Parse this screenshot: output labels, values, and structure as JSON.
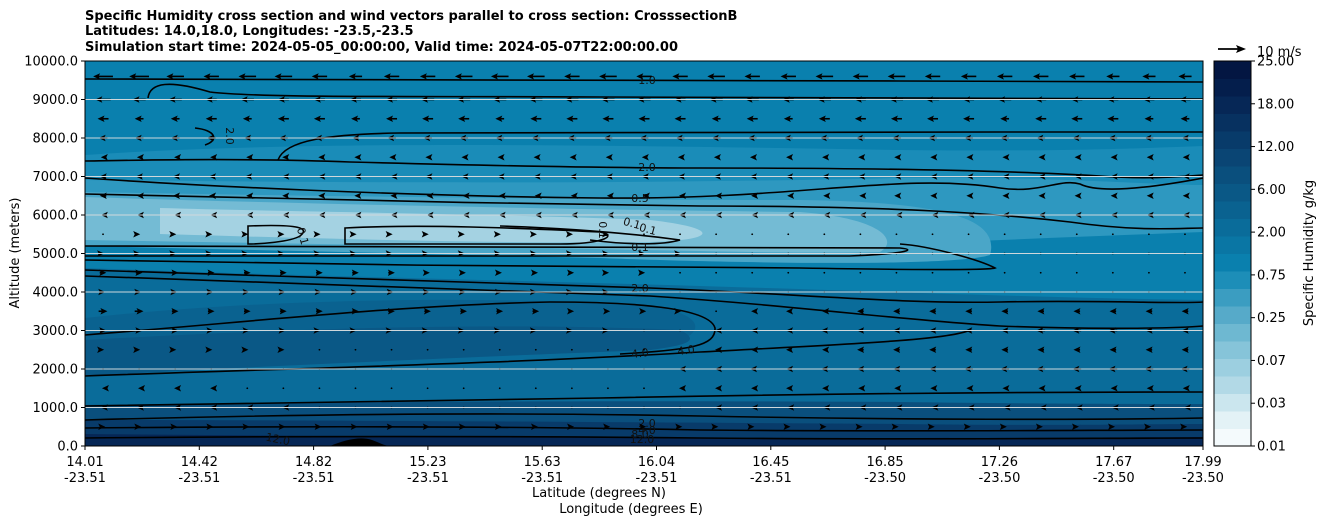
{
  "chart_data": {
    "type": "contourf",
    "title_lines": [
      "Specific Humidity cross section and wind vectors parallel to cross section: CrosssectionB",
      "Latitudes: 14.0,18.0, Longitudes: -23.5,-23.5",
      "Simulation start time: 2024-05-05_00:00:00, Valid time: 2024-05-07T22:00:00.00"
    ],
    "xlabel_lat": "Latitude (degrees N)",
    "xlabel_lon": "Longitude (degrees E)",
    "ylabel": "Altitude (meters)",
    "ylim": [
      0,
      10000
    ],
    "x_ticks": [
      {
        "lat": "14.01",
        "lon": "-23.51"
      },
      {
        "lat": "14.42",
        "lon": "-23.51"
      },
      {
        "lat": "14.82",
        "lon": "-23.51"
      },
      {
        "lat": "15.23",
        "lon": "-23.51"
      },
      {
        "lat": "15.63",
        "lon": "-23.51"
      },
      {
        "lat": "16.04",
        "lon": "-23.51"
      },
      {
        "lat": "16.45",
        "lon": "-23.51"
      },
      {
        "lat": "16.85",
        "lon": "-23.50"
      },
      {
        "lat": "17.26",
        "lon": "-23.50"
      },
      {
        "lat": "17.67",
        "lon": "-23.50"
      },
      {
        "lat": "17.99",
        "lon": "-23.50"
      }
    ],
    "y_ticks": [
      "0.0",
      "1000.0",
      "2000.0",
      "3000.0",
      "4000.0",
      "5000.0",
      "6000.0",
      "7000.0",
      "8000.0",
      "9000.0",
      "10000.0"
    ],
    "colorbar": {
      "label": "Specific Humidity g/kg",
      "ticks": [
        "0.01",
        "0.03",
        "0.07",
        "0.25",
        "0.75",
        "2.00",
        "6.00",
        "12.00",
        "18.00",
        "25.00"
      ],
      "colors": [
        "#f4fafc",
        "#e3f2f6",
        "#cbe6ee",
        "#b2d9e6",
        "#9ccfe0",
        "#86c4d9",
        "#6eb8d1",
        "#56aac9",
        "#3b9dc1",
        "#1d8eb8",
        "#0a80ae",
        "#0a76a4",
        "#0a6c9a",
        "#0a6290",
        "#0a5886",
        "#0a4f7d",
        "#0a4574",
        "#083b6a",
        "#073160",
        "#062756",
        "#041e4c",
        "#031642"
      ]
    },
    "quiver_key": "10 m/s",
    "contour_labels": [
      "1.0",
      "2.0",
      "2.0",
      "0.5",
      "0.1",
      "0.1",
      "0.1",
      "0.1",
      "0.1",
      "2.0",
      "4.0",
      "4.0",
      "2.0",
      "4.0",
      "8.0",
      "12.0",
      "12.0"
    ],
    "wind_rows": [
      {
        "alt": 9600,
        "u": [
          -9,
          -9,
          -8,
          -7,
          -8,
          -8,
          -7,
          -6,
          -7,
          -7,
          -8,
          -8,
          -8,
          -7,
          -8,
          -7,
          -7,
          -8,
          -7,
          -7,
          -8,
          -7,
          -8,
          -7,
          -7,
          -7,
          -7,
          -7,
          -6,
          -6,
          -6
        ]
      },
      {
        "alt": 9000,
        "u": [
          -7,
          -6,
          -6,
          -5,
          -6,
          -5,
          -5,
          -5,
          -5,
          -6,
          -6,
          -6,
          -6,
          -6,
          -6,
          -6,
          -5,
          -6,
          -6,
          -5,
          -6,
          -5,
          -6,
          -6,
          -5,
          -6,
          -5,
          -5,
          -5,
          -5,
          -5
        ]
      },
      {
        "alt": 8500,
        "u": [
          -5,
          -4,
          -4,
          -5,
          -4,
          -5,
          -5,
          -4,
          -5,
          -5,
          -5,
          -4,
          -5,
          -5,
          -5,
          -5,
          -5,
          -4,
          -5,
          -4,
          -5,
          -5,
          -5,
          -5,
          -5,
          -4,
          -5,
          -5,
          -5,
          -4,
          -4
        ]
      },
      {
        "alt": 8000,
        "u": [
          -4,
          -4,
          -4,
          -4,
          -3,
          -4,
          -4,
          -3,
          -4,
          -4,
          -4,
          -4,
          -4,
          -4,
          -4,
          -4,
          -4,
          -4,
          -4,
          -4,
          -4,
          -4,
          -4,
          -4,
          -4,
          -4,
          -4,
          -4,
          -4,
          -4,
          -3
        ]
      },
      {
        "alt": 7500,
        "u": [
          -2,
          -2,
          -1,
          -1,
          -1,
          -1,
          -1,
          -1,
          -2,
          -2,
          -2,
          -2,
          -2,
          -2,
          -2,
          -2,
          -2,
          -2,
          -2,
          -2,
          -2,
          -2,
          -2,
          -2,
          -2,
          -2,
          -2,
          -2,
          -2,
          -2,
          -2
        ]
      },
      {
        "alt": 7000,
        "u": [
          -3,
          -3,
          -2,
          -2,
          -2,
          -1,
          -1,
          -1,
          -1,
          -2,
          -2,
          -2,
          -2,
          -2,
          -2,
          -2,
          -2,
          -2,
          -2,
          -2,
          -2,
          -2,
          -2,
          -2,
          -2,
          -2,
          -2,
          -2,
          -2,
          -2,
          -2
        ]
      },
      {
        "alt": 6500,
        "u": [
          -3,
          -2,
          -2,
          -2,
          -1,
          -1,
          -1,
          -1,
          -1,
          -1,
          -1,
          -1,
          -1,
          -1,
          -1,
          -1,
          -1,
          -1,
          -1,
          -1,
          -1,
          -1,
          -2,
          -2,
          -2,
          -2,
          -2,
          -2,
          -2,
          -2,
          -2
        ]
      },
      {
        "alt": 6000,
        "u": [
          -2,
          -2,
          -1,
          -1,
          -1,
          -1,
          -1,
          -1,
          -1,
          -1,
          -1,
          -1,
          -1,
          -1,
          -1,
          -1,
          -1,
          -1,
          -1,
          -1,
          -1,
          -1,
          -1,
          -1,
          -1,
          -2,
          -2,
          -2,
          -2,
          -2,
          -2
        ]
      },
      {
        "alt": 5500,
        "u": [
          0,
          1,
          1,
          1,
          1,
          1,
          1,
          1,
          1,
          1,
          1,
          1,
          1,
          1,
          1,
          0,
          0,
          0,
          0,
          0,
          0,
          0,
          0,
          0,
          0,
          0,
          0,
          0,
          0,
          0,
          0
        ]
      },
      {
        "alt": 5000,
        "u": [
          1,
          1,
          1,
          1,
          1,
          1,
          1,
          1,
          1,
          1,
          1,
          1,
          1,
          1,
          1,
          1,
          1,
          0,
          0,
          0,
          0,
          0,
          0,
          0,
          0,
          0,
          0,
          0,
          0,
          0,
          0
        ]
      },
      {
        "alt": 4500,
        "u": [
          3,
          3,
          3,
          3,
          3,
          3,
          3,
          3,
          3,
          2,
          2,
          2,
          2,
          2,
          1,
          1,
          0,
          0,
          0,
          0,
          0,
          0,
          0,
          0,
          0,
          0,
          0,
          0,
          0,
          0,
          0
        ]
      },
      {
        "alt": 4000,
        "u": [
          2,
          2,
          2,
          2,
          2,
          2,
          2,
          2,
          2,
          2,
          2,
          2,
          1,
          1,
          1,
          0,
          0,
          0,
          0,
          0,
          0,
          0,
          0,
          0,
          0,
          0,
          0,
          0,
          0,
          0,
          0
        ]
      },
      {
        "alt": 3500,
        "u": [
          4,
          4,
          3,
          3,
          3,
          3,
          3,
          3,
          3,
          3,
          3,
          3,
          3,
          2,
          2,
          2,
          1,
          0,
          -1,
          -2,
          -2,
          -3,
          -3,
          -3,
          -3,
          -3,
          -3,
          -3,
          -3,
          -3,
          -3
        ]
      },
      {
        "alt": 3000,
        "u": [
          3,
          3,
          3,
          2,
          2,
          2,
          1,
          1,
          1,
          1,
          1,
          1,
          1,
          1,
          1,
          0,
          0,
          -1,
          -1,
          -2,
          -3,
          -3,
          -3,
          -3,
          -3,
          -3,
          -4,
          -4,
          -4,
          -3,
          -3
        ]
      },
      {
        "alt": 2500,
        "u": [
          1,
          1,
          1,
          1,
          1,
          1,
          0,
          0,
          0,
          0,
          0,
          0,
          0,
          0,
          0,
          0,
          0,
          -1,
          -1,
          -2,
          -2,
          -3,
          -3,
          -3,
          -3,
          -3,
          -3,
          -3,
          -3,
          -3,
          -3
        ]
      },
      {
        "alt": 2000,
        "u": [
          0,
          0,
          0,
          0,
          0,
          0,
          0,
          0,
          0,
          0,
          0,
          0,
          0,
          0,
          0,
          0,
          -1,
          -1,
          -2,
          -2,
          -3,
          -3,
          -3,
          -3,
          -4,
          -4,
          -4,
          -4,
          -4,
          -4,
          -4
        ]
      },
      {
        "alt": 1500,
        "u": [
          -1,
          -1,
          -1,
          -1,
          0,
          0,
          0,
          0,
          0,
          0,
          0,
          0,
          0,
          0,
          0,
          0,
          -1,
          -1,
          -1,
          -2,
          -2,
          -2,
          -2,
          -2,
          -2,
          -2,
          -2,
          -2,
          -2,
          -2,
          -2
        ]
      },
      {
        "alt": 1000,
        "u": [
          -2,
          -2,
          -1,
          -1,
          -1,
          -1,
          0,
          0,
          0,
          0,
          0,
          0,
          0,
          0,
          0,
          0,
          0,
          -1,
          -1,
          -1,
          -1,
          -1,
          -1,
          -1,
          -1,
          -1,
          -1,
          -1,
          -1,
          -1,
          -1
        ]
      },
      {
        "alt": 500,
        "u": [
          2,
          2,
          2,
          2,
          2,
          2,
          2,
          2,
          2,
          2,
          2,
          2,
          2,
          2,
          2,
          2,
          2,
          2,
          2,
          2,
          2,
          2,
          2,
          2,
          2,
          2,
          2,
          2,
          2,
          2,
          2
        ]
      }
    ]
  }
}
